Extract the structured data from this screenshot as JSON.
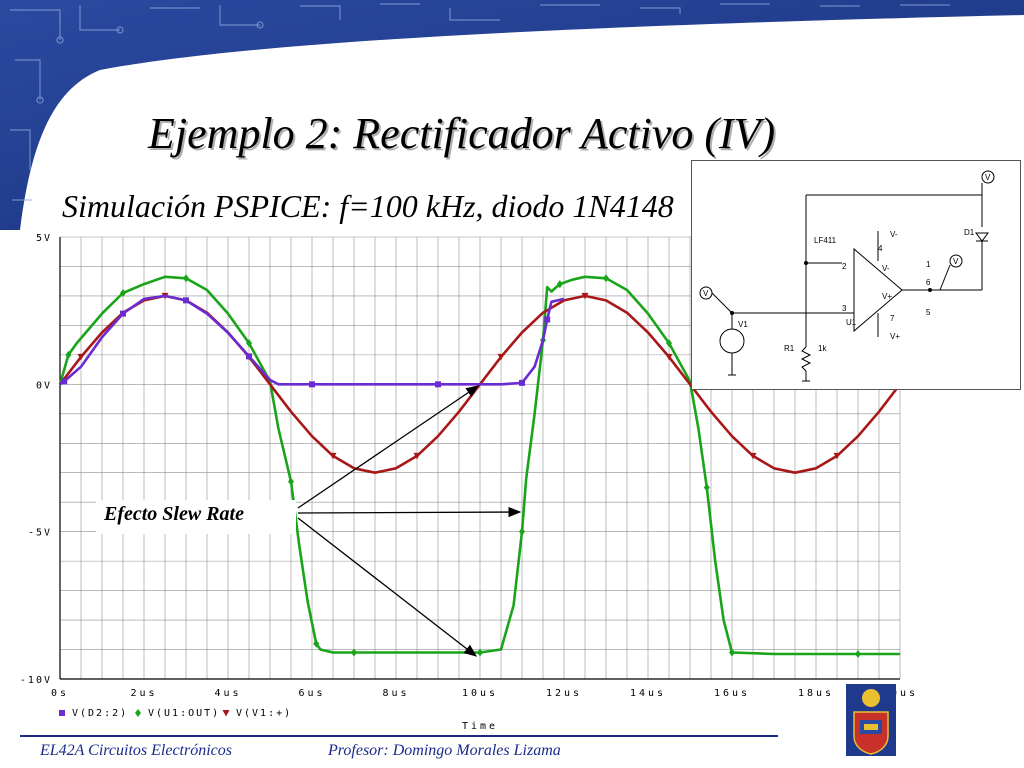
{
  "slide": {
    "title": "Ejemplo 2: Rectificador Activo (IV)",
    "subtitle": "Simulación PSPICE: f=100 kHz, diodo 1N4148",
    "annotation": "Efecto Slew Rate",
    "footer_left": "EL42A Circuitos Electrónicos",
    "footer_right": "Profesor: Domingo Morales Lizama",
    "colors": {
      "footer": "#1a2a8a",
      "banner": "#1f3a8c"
    }
  },
  "chart_data": {
    "type": "line",
    "xlabel": "Time",
    "x_ticks": [
      "0s",
      "2us",
      "4us",
      "6us",
      "8us",
      "10us",
      "12us",
      "14us",
      "16us",
      "18us",
      "20us"
    ],
    "y_ticks": [
      "5V",
      "0V",
      "-5V",
      "-10V"
    ],
    "xlim": [
      0,
      20
    ],
    "ylim": [
      -10,
      5
    ],
    "grid": true,
    "legend_position": "bottom-left",
    "series": [
      {
        "name": "V(D2:2)",
        "color": "#6a2bd0",
        "marker": "square",
        "x": [
          0,
          0.1,
          0.5,
          1.0,
          1.5,
          2.0,
          2.5,
          3.0,
          3.5,
          4.0,
          4.5,
          5.0,
          5.2,
          6.0,
          7.0,
          8.0,
          9.0,
          10.0,
          10.5,
          11.0,
          11.3,
          11.5,
          11.6,
          11.7,
          12.0
        ],
        "y": [
          0,
          0.1,
          0.6,
          1.6,
          2.4,
          2.9,
          3.0,
          2.85,
          2.4,
          1.75,
          0.95,
          0.15,
          0.0,
          0.0,
          0.0,
          0.0,
          0.0,
          0.0,
          0.0,
          0.05,
          0.6,
          1.5,
          2.2,
          2.8,
          2.9
        ]
      },
      {
        "name": "V(U1:OUT)",
        "color": "#1aa41a",
        "marker": "diamond",
        "x": [
          0,
          0.2,
          0.4,
          1.0,
          1.5,
          2.0,
          2.5,
          3.0,
          3.5,
          4.0,
          4.5,
          5.0,
          5.2,
          5.5,
          5.7,
          5.9,
          6.1,
          6.2,
          6.5,
          7.0,
          8.0,
          9.0,
          10.0,
          10.5,
          10.8,
          11.0,
          11.1,
          11.3,
          11.5,
          11.6,
          11.7,
          11.9,
          12.2,
          12.5,
          13.0,
          13.5,
          14.0,
          14.5,
          15.0,
          15.2,
          15.4,
          15.6,
          15.8,
          16.0,
          17.0,
          18.0,
          19.0,
          20.0
        ],
        "y": [
          0,
          1.0,
          1.4,
          2.4,
          3.1,
          3.4,
          3.65,
          3.6,
          3.2,
          2.4,
          1.4,
          0.1,
          -1.5,
          -3.3,
          -5.5,
          -7.4,
          -8.8,
          -9.0,
          -9.1,
          -9.1,
          -9.1,
          -9.1,
          -9.1,
          -9.0,
          -7.5,
          -5.0,
          -3.2,
          -1.0,
          1.5,
          3.3,
          3.15,
          3.4,
          3.55,
          3.65,
          3.6,
          3.2,
          2.4,
          1.4,
          0.1,
          -1.5,
          -3.5,
          -6.0,
          -8.0,
          -9.1,
          -9.15,
          -9.15,
          -9.15,
          -9.15
        ]
      },
      {
        "name": "V(V1:+)",
        "color": "#a81818",
        "marker": "triangle",
        "x": [
          0,
          0.5,
          1.0,
          1.5,
          2.0,
          2.5,
          3.0,
          3.5,
          4.0,
          4.5,
          5.0,
          5.5,
          6.0,
          6.5,
          7.0,
          7.5,
          8.0,
          8.5,
          9.0,
          9.5,
          10.0,
          10.5,
          11.0,
          11.5,
          12.0,
          12.5,
          13.0,
          13.5,
          14.0,
          14.5,
          15.0,
          15.5,
          16.0,
          16.5,
          17.0,
          17.5,
          18.0,
          18.5,
          19.0,
          19.5,
          20.0
        ],
        "y": [
          0,
          0.93,
          1.76,
          2.43,
          2.85,
          3.0,
          2.85,
          2.43,
          1.76,
          0.93,
          0,
          -0.93,
          -1.76,
          -2.43,
          -2.85,
          -3.0,
          -2.85,
          -2.43,
          -1.76,
          -0.93,
          0,
          0.93,
          1.76,
          2.43,
          2.85,
          3.0,
          2.85,
          2.43,
          1.76,
          0.93,
          0,
          -0.93,
          -1.76,
          -2.43,
          -2.85,
          -3.0,
          -2.85,
          -2.43,
          -1.76,
          -0.93,
          0
        ]
      }
    ]
  },
  "circuit": {
    "labels": {
      "opamp": "LF411",
      "diode": "D1",
      "source": "V1",
      "resistor": "R1",
      "resistor_value": "1k",
      "opamp_ref": "U1",
      "vminus": "V-",
      "vplus": "V+",
      "vminus_pin": "V-",
      "vplus_pin": "V+",
      "pin2": "2",
      "pin3": "3",
      "pin4": "4",
      "pin6": "6",
      "pin7": "7",
      "pin1": "1",
      "pin5": "5",
      "probe": "V"
    }
  }
}
